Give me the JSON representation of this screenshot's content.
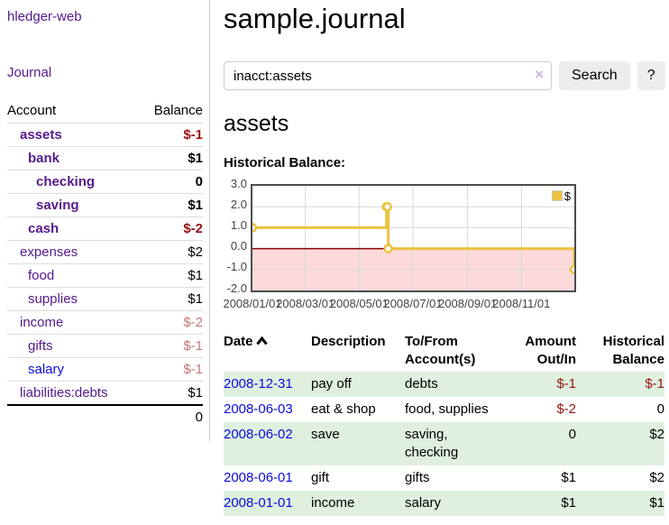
{
  "app": {
    "brand": "hledger-web",
    "nav_journal": "Journal"
  },
  "sidebar": {
    "header": {
      "account": "Account",
      "balance": "Balance"
    },
    "accounts": [
      {
        "name": "assets",
        "balance": "$-1",
        "depth": 1,
        "bold": true,
        "link_class": "purple",
        "balance_class": "neg-strong"
      },
      {
        "name": "bank",
        "balance": "$1",
        "depth": 2,
        "bold": true,
        "link_class": "purple",
        "balance_class": "pos"
      },
      {
        "name": "checking",
        "balance": "0",
        "depth": 3,
        "bold": true,
        "link_class": "purple",
        "balance_class": "pos"
      },
      {
        "name": "saving",
        "balance": "$1",
        "depth": 3,
        "bold": true,
        "link_class": "purple",
        "balance_class": "pos"
      },
      {
        "name": "cash",
        "balance": "$-2",
        "depth": 2,
        "bold": true,
        "link_class": "purple",
        "balance_class": "neg-strong"
      },
      {
        "name": "expenses",
        "balance": "$2",
        "depth": 1,
        "bold": false,
        "link_class": "purple",
        "balance_class": "pos"
      },
      {
        "name": "food",
        "balance": "$1",
        "depth": 2,
        "bold": false,
        "link_class": "purple",
        "balance_class": "pos"
      },
      {
        "name": "supplies",
        "balance": "$1",
        "depth": 2,
        "bold": false,
        "link_class": "purple",
        "balance_class": "pos"
      },
      {
        "name": "income",
        "balance": "$-2",
        "depth": 1,
        "bold": false,
        "link_class": "purple",
        "balance_class": "neg-soft"
      },
      {
        "name": "gifts",
        "balance": "$-1",
        "depth": 2,
        "bold": false,
        "link_class": "purple",
        "balance_class": "neg-soft"
      },
      {
        "name": "salary",
        "balance": "$-1",
        "depth": 2,
        "bold": false,
        "link_class": "blue",
        "balance_class": "neg-soft"
      },
      {
        "name": "liabilities:debts",
        "balance": "$1",
        "depth": 1,
        "bold": false,
        "link_class": "purple",
        "balance_class": "pos"
      }
    ],
    "total": "0"
  },
  "main": {
    "title": "sample.journal",
    "search": {
      "value": "inacct:assets",
      "clear_icon": "×",
      "button": "Search",
      "help": "?"
    },
    "account_heading": "assets",
    "chart_label": "Historical Balance:"
  },
  "chart_data": {
    "type": "line",
    "title": "Historical Balance",
    "step": true,
    "series": [
      {
        "name": "$",
        "color": "#edc240",
        "points": [
          [
            "2008-01-01",
            1
          ],
          [
            "2008-06-01",
            2
          ],
          [
            "2008-06-02",
            2
          ],
          [
            "2008-06-03",
            0
          ],
          [
            "2008-12-31",
            -1
          ]
        ]
      }
    ],
    "x_range": [
      "2008-01-01",
      "2008-12-31"
    ],
    "y_range": [
      -2,
      3
    ],
    "y_ticks": [
      {
        "value": 3,
        "label": "3.0"
      },
      {
        "value": 2,
        "label": "2.0"
      },
      {
        "value": 1,
        "label": "1.0"
      },
      {
        "value": 0,
        "label": "0.0"
      },
      {
        "value": -1,
        "label": "-1.0"
      },
      {
        "value": -2,
        "label": "-2.0"
      }
    ],
    "x_ticks": [
      {
        "date": "2008-01-01",
        "label": "2008/01/01"
      },
      {
        "date": "2008-03-01",
        "label": "2008/03/01"
      },
      {
        "date": "2008-05-01",
        "label": "2008/05/01"
      },
      {
        "date": "2008-07-01",
        "label": "2008/07/01"
      },
      {
        "date": "2008-09-01",
        "label": "2008/09/01"
      },
      {
        "date": "2008-11-01",
        "label": "2008/11/01"
      }
    ],
    "grid": true,
    "negative_region_color": "#fcdada",
    "zero_line_color": "#8b0000",
    "gridline_color": "#d8d8d8",
    "legend": {
      "label": "$",
      "position": "top-right"
    }
  },
  "register": {
    "headers": {
      "date": "Date",
      "description": "Description",
      "accounts": "To/From Account(s)",
      "amount": "Amount Out/In",
      "balance": "Historical Balance"
    },
    "rows": [
      {
        "date": "2008-12-31",
        "description": "pay off",
        "accounts": "debts",
        "amount": "$-1",
        "balance": "$-1",
        "amount_class": "neg",
        "balance_class": "neg"
      },
      {
        "date": "2008-06-03",
        "description": "eat & shop",
        "accounts": "food, supplies",
        "amount": "$-2",
        "balance": "0",
        "amount_class": "neg",
        "balance_class": "pos"
      },
      {
        "date": "2008-06-02",
        "description": "save",
        "accounts": "saving, checking",
        "amount": "0",
        "balance": "$2",
        "amount_class": "pos",
        "balance_class": "pos"
      },
      {
        "date": "2008-06-01",
        "description": "gift",
        "accounts": "gifts",
        "amount": "$1",
        "balance": "$2",
        "amount_class": "pos",
        "balance_class": "pos"
      },
      {
        "date": "2008-01-01",
        "description": "income",
        "accounts": "salary",
        "amount": "$1",
        "balance": "$1",
        "amount_class": "pos",
        "balance_class": "pos"
      }
    ]
  }
}
